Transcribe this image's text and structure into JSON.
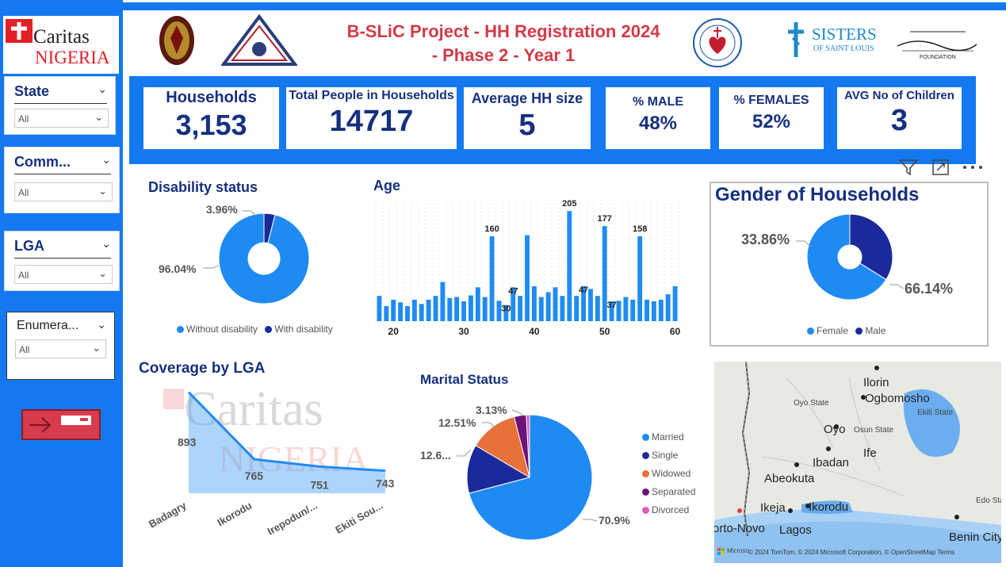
{
  "sidebar": {
    "logo": {
      "name": "Caritas",
      "name2": "NIGERIA"
    },
    "slicers": [
      {
        "title": "State",
        "value": "All"
      },
      {
        "title": "Comm...",
        "value": "All"
      },
      {
        "title": "LGA",
        "value": "All"
      },
      {
        "title": "Enumera...",
        "value": "All"
      }
    ]
  },
  "header": {
    "title_line1": "B-SLiC Project - HH  Registration 2024",
    "title_line2": "- Phase 2 - Year 1",
    "sisters_logo": "SISTERS",
    "sisters_sub": "OF SAINT LOUIS",
    "foundation_logo": "FOUNDATION"
  },
  "kpis": [
    {
      "label": "Households",
      "value": "3,153"
    },
    {
      "label": "Total People in Households",
      "value": "14717"
    },
    {
      "label": "Average HH size",
      "value": "5"
    },
    {
      "label": "% MALE",
      "value": "48%"
    },
    {
      "label": "% FEMALES",
      "value": "52%"
    },
    {
      "label": "AVG No of Children",
      "value": "3"
    }
  ],
  "disability": {
    "title": "Disability status",
    "label_small": "3.96%",
    "label_large": "96.04%",
    "legend": [
      "Without disability",
      "With disability"
    ],
    "colors": [
      "#1f8bf2",
      "#1b2a9a"
    ]
  },
  "age": {
    "title": "Age",
    "x_ticks": [
      "20",
      "30",
      "40",
      "50",
      "60"
    ],
    "data_labels": [
      "160",
      "30",
      "47",
      "205",
      "47",
      "177",
      "37",
      "158"
    ]
  },
  "gender": {
    "title": "Gender of Households",
    "label_male": "33.86%",
    "label_female": "66.14%",
    "legend": [
      "Female",
      "Male"
    ],
    "colors": [
      "#1f8bf2",
      "#1b2a9a"
    ]
  },
  "coverage": {
    "title": "Coverage by LGA",
    "watermark1": "Caritas",
    "watermark2": "NIGERIA"
  },
  "marital": {
    "title": "Marital Status",
    "labels": [
      "70.9%",
      "12.6...",
      "12.51%",
      "3.13%"
    ],
    "legend": [
      "Married",
      "Single",
      "Widowed",
      "Separated",
      "Divorced"
    ],
    "colors": [
      "#1f8bf2",
      "#1b2a9a",
      "#e8703a",
      "#6b137a",
      "#e35bb6"
    ]
  },
  "map": {
    "places": [
      "Ilorin",
      "Ogbomosho",
      "Oyo State",
      "Ekiti State",
      "Oyo",
      "Osun State",
      "Ife",
      "Ibadan",
      "Abeokuta",
      "Ikeja",
      "Ikorodu",
      "Lagos",
      "orto-Novo",
      "Edo Sta",
      "Benin City"
    ],
    "attribution": "© 2024 TomTom, © 2024 Microsoft Corporation, © OpenStreetMap  Terms",
    "brand": "Microso"
  },
  "chart_data": [
    {
      "type": "bar",
      "title": "Age",
      "x": [
        18,
        19,
        20,
        21,
        22,
        23,
        24,
        25,
        26,
        27,
        28,
        29,
        30,
        31,
        32,
        33,
        34,
        35,
        36,
        37,
        38,
        39,
        40,
        41,
        42,
        43,
        44,
        45,
        46,
        47,
        48,
        49,
        50,
        51,
        52,
        53,
        54,
        55,
        56,
        57,
        58,
        59,
        60
      ],
      "values": [
        47,
        28,
        40,
        35,
        28,
        40,
        32,
        40,
        47,
        73,
        43,
        45,
        37,
        48,
        63,
        45,
        158,
        38,
        30,
        63,
        47,
        160,
        65,
        45,
        54,
        63,
        47,
        205,
        47,
        65,
        60,
        47,
        177,
        37,
        38,
        45,
        40,
        158,
        40,
        37,
        40,
        50,
        65
      ],
      "x_ticks": [
        20,
        30,
        40,
        50,
        60
      ],
      "data_labels": {
        "160": 160,
        "30": 30,
        "47": 47,
        "205": 205,
        "177": 177,
        "37": 37,
        "158": 158
      }
    },
    {
      "type": "area",
      "title": "Coverage by LGA",
      "categories": [
        "Badagry",
        "Ikorodu",
        "Irepodun/...",
        "Ekiti Sou..."
      ],
      "values": [
        893,
        765,
        751,
        743
      ]
    },
    {
      "type": "pie",
      "title": "Marital Status",
      "categories": [
        "Married",
        "Single",
        "Widowed",
        "Separated",
        "Divorced"
      ],
      "values": [
        70.9,
        12.6,
        12.51,
        3.13,
        0.86
      ]
    },
    {
      "type": "pie",
      "title": "Disability status",
      "categories": [
        "Without disability",
        "With disability"
      ],
      "values": [
        96.04,
        3.96
      ]
    },
    {
      "type": "pie",
      "title": "Gender of Households",
      "categories": [
        "Female",
        "Male"
      ],
      "values": [
        66.14,
        33.86
      ]
    }
  ]
}
